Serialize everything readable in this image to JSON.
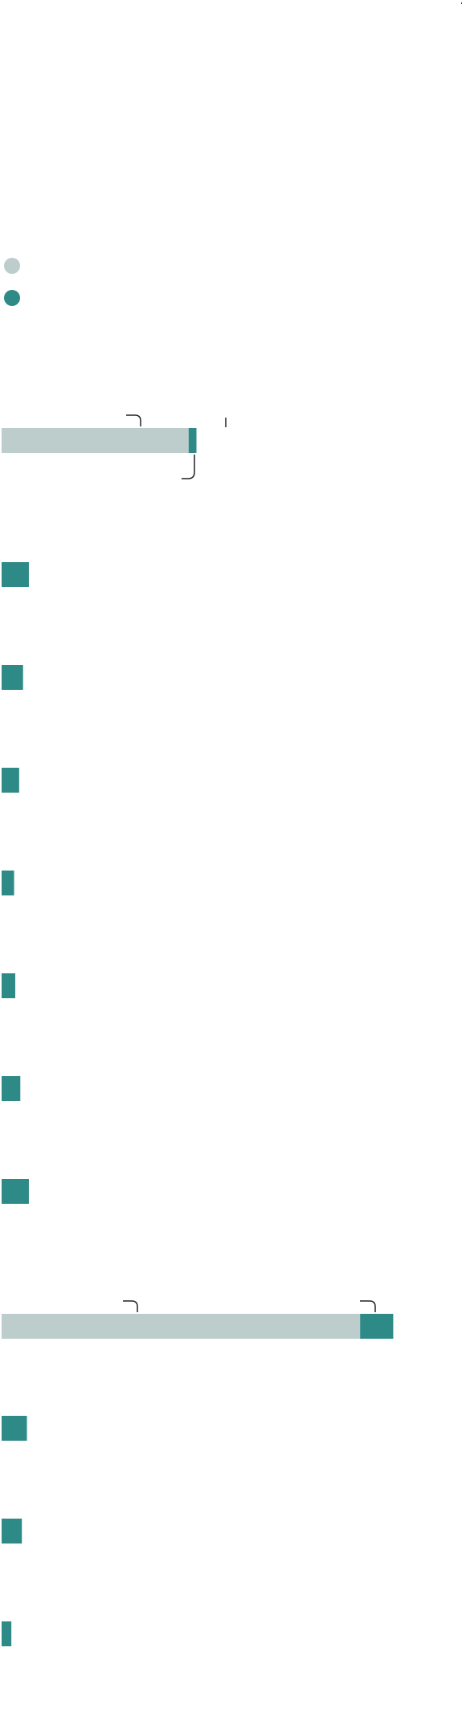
{
  "colors": {
    "background": "#ffffff",
    "series_light": "#bccdcb",
    "series_teal": "#2d8a86",
    "annotation_stroke": "#222222"
  },
  "legend": {
    "placement": "top-left",
    "items": [
      {
        "name": "",
        "color": "#bccdcb"
      },
      {
        "name": "",
        "color": "#2d8a86"
      }
    ]
  },
  "chart_data": {
    "type": "bar",
    "orientation": "horizontal",
    "title": "",
    "xlabel": "",
    "ylabel": "",
    "xlim": [
      0,
      100
    ],
    "grid": false,
    "legend_placement": "top-left",
    "groups": [
      {
        "label": "",
        "stacked_total": {
          "light": 48,
          "teal": 2
        }
      },
      {
        "label": "",
        "categories": [
          "",
          "",
          "",
          "",
          "",
          "",
          ""
        ],
        "values": [
          7,
          5.5,
          4.5,
          3.2,
          3.5,
          4.8,
          7
        ]
      },
      {
        "label": "",
        "stacked_total": {
          "light": 92,
          "teal": 8.5
        }
      },
      {
        "label": "",
        "categories": [
          "",
          "",
          ""
        ],
        "values": [
          6.5,
          5.2,
          2.5
        ]
      }
    ]
  }
}
